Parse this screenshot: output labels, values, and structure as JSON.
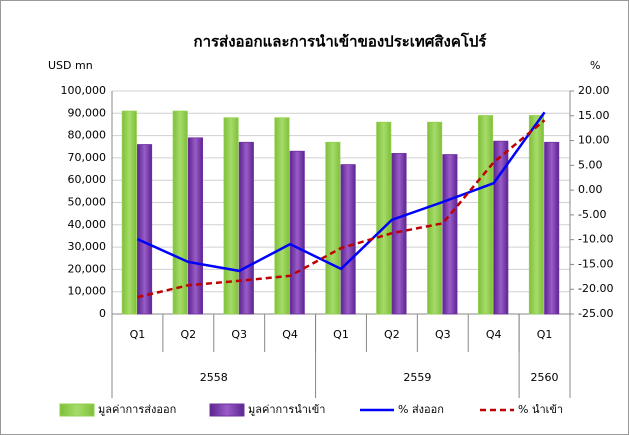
{
  "chart_data": {
    "type": "bar_line",
    "title": "การส่งออกและการนำเข้าของประเทศสิงคโปร์",
    "ylabel": "USD  mn",
    "y2label": "%",
    "groups": [
      {
        "name": "2558",
        "categories": [
          "Q1",
          "Q2",
          "Q3",
          "Q4"
        ]
      },
      {
        "name": "2559",
        "categories": [
          "Q1",
          "Q2",
          "Q3",
          "Q4"
        ]
      },
      {
        "name": "2560",
        "categories": [
          "Q1"
        ]
      }
    ],
    "series": [
      {
        "name": "มูลค่าการส่งออก",
        "type": "bar",
        "color": "#92d050",
        "values": [
          91000,
          91000,
          88000,
          88000,
          77000,
          86000,
          86000,
          89000,
          89000
        ]
      },
      {
        "name": "มูลค่าการนำเข้า",
        "type": "bar",
        "color": "#7030a0",
        "values": [
          76000,
          79000,
          77000,
          73000,
          67000,
          72000,
          71500,
          77500,
          77000
        ]
      },
      {
        "name": "% ส่งออก",
        "type": "line",
        "axis": "y2",
        "color": "#0000ff",
        "dashed": false,
        "values": [
          -9.9,
          -14.5,
          -16.3,
          -10.9,
          -15.9,
          -6.0,
          -2.4,
          1.4,
          15.7
        ]
      },
      {
        "name": "% นำเข้า",
        "type": "line",
        "axis": "y2",
        "color": "#c00000",
        "dashed": true,
        "values": [
          -21.6,
          -19.2,
          -18.3,
          -17.3,
          -11.7,
          -8.7,
          -6.7,
          5.6,
          14.1
        ]
      }
    ],
    "ylim": [
      0,
      100000
    ],
    "yticks": [
      0,
      {
        "value": 10000,
        "label": "10,000"
      },
      {
        "value": 20000,
        "label": "20,000"
      },
      {
        "value": 30000,
        "label": "30,000"
      },
      {
        "value": 40000,
        "label": "40,000"
      },
      {
        "value": 50000,
        "label": "50,000"
      },
      {
        "value": 60000,
        "label": "60,000"
      },
      {
        "value": 70000,
        "label": "70,000"
      },
      {
        "value": 80000,
        "label": "80,000"
      },
      {
        "value": 90000,
        "label": "90,000"
      },
      {
        "value": 100000,
        "label": "100,000"
      }
    ],
    "y2lim": [
      -25,
      20
    ],
    "y2ticks": [
      {
        "value": -25,
        "label": "-25.00"
      },
      {
        "value": -20,
        "label": "-20.00"
      },
      {
        "value": -15,
        "label": "-15.00"
      },
      {
        "value": -10,
        "label": "-10.00"
      },
      {
        "value": -5,
        "label": "-5.00"
      },
      {
        "value": 0,
        "label": "0.00"
      },
      {
        "value": 5,
        "label": "5.00"
      },
      {
        "value": 10,
        "label": "10.00"
      },
      {
        "value": 15,
        "label": "15.00"
      },
      {
        "value": 20,
        "label": "20.00"
      }
    ],
    "grid": true,
    "legend": "bottom"
  }
}
